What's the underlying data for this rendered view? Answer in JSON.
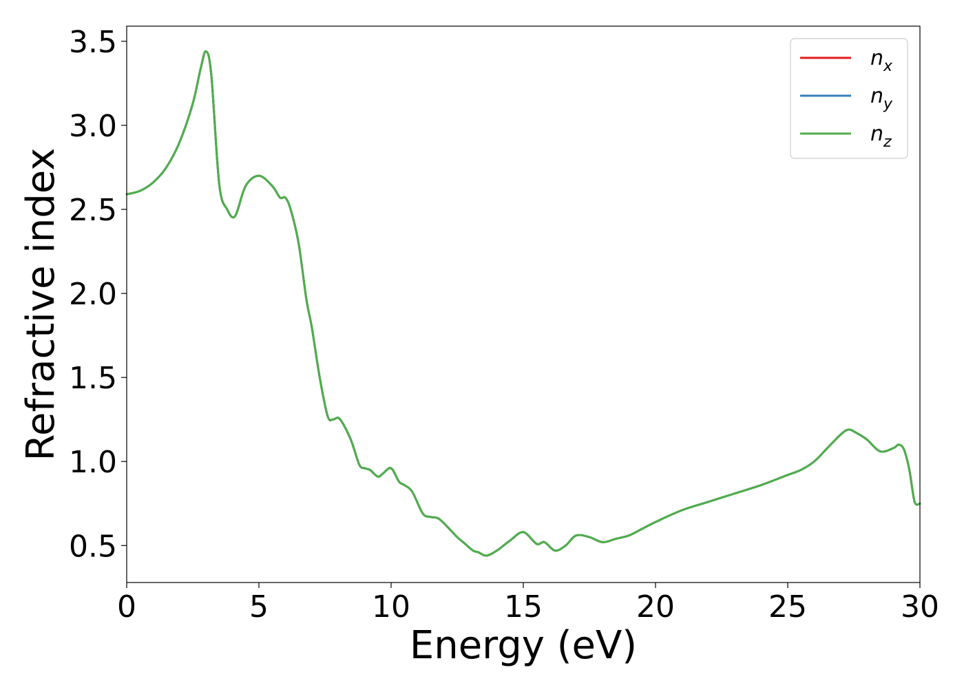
{
  "chart_data": {
    "type": "line",
    "xlabel": "Energy (eV)",
    "ylabel": "Refractive index",
    "xlim": [
      0,
      30
    ],
    "ylim": [
      0.28,
      3.59
    ],
    "xticks": [
      0,
      5,
      10,
      15,
      20,
      25,
      30
    ],
    "yticks": [
      0.5,
      1.0,
      1.5,
      2.0,
      2.5,
      3.0,
      3.5
    ],
    "xtick_labels": [
      "0",
      "5",
      "10",
      "15",
      "20",
      "25",
      "30"
    ],
    "ytick_labels": [
      "0.5",
      "1.0",
      "1.5",
      "2.0",
      "2.5",
      "3.0",
      "3.5"
    ],
    "grid": false,
    "legend_position": "top-right",
    "x": [
      0,
      0.5,
      1,
      1.5,
      2,
      2.5,
      2.8,
      3.0,
      3.2,
      3.5,
      3.8,
      4.1,
      4.5,
      5.0,
      5.5,
      5.8,
      6.0,
      6.2,
      6.5,
      6.8,
      7.0,
      7.3,
      7.6,
      7.8,
      8.0,
      8.2,
      8.5,
      8.8,
      9.0,
      9.2,
      9.5,
      9.7,
      10.0,
      10.3,
      10.5,
      10.8,
      11.2,
      11.5,
      11.8,
      12.2,
      12.5,
      12.8,
      13.1,
      13.3,
      13.6,
      14.0,
      14.5,
      15.0,
      15.5,
      15.8,
      16.2,
      16.6,
      17.0,
      17.5,
      18.0,
      18.5,
      19.0,
      19.5,
      20.0,
      21.0,
      22.0,
      23.0,
      24.0,
      25.0,
      25.5,
      26.0,
      26.5,
      27.0,
      27.3,
      27.6,
      28.0,
      28.5,
      29.0,
      29.2,
      29.4,
      29.6,
      29.8,
      30.0
    ],
    "series": [
      {
        "name": "x",
        "color": "#e41a1c",
        "values": [
          2.59,
          2.61,
          2.66,
          2.75,
          2.9,
          3.13,
          3.34,
          3.44,
          3.3,
          2.65,
          2.5,
          2.46,
          2.64,
          2.7,
          2.64,
          2.57,
          2.57,
          2.5,
          2.3,
          1.96,
          1.8,
          1.5,
          1.27,
          1.25,
          1.26,
          1.22,
          1.12,
          0.98,
          0.96,
          0.95,
          0.91,
          0.93,
          0.96,
          0.88,
          0.86,
          0.82,
          0.69,
          0.67,
          0.66,
          0.6,
          0.55,
          0.51,
          0.47,
          0.46,
          0.44,
          0.47,
          0.53,
          0.58,
          0.51,
          0.52,
          0.47,
          0.5,
          0.56,
          0.55,
          0.52,
          0.54,
          0.56,
          0.6,
          0.64,
          0.71,
          0.76,
          0.81,
          0.86,
          0.92,
          0.95,
          1.0,
          1.08,
          1.16,
          1.19,
          1.17,
          1.13,
          1.06,
          1.08,
          1.1,
          1.07,
          0.95,
          0.76,
          0.75
        ]
      },
      {
        "name": "y",
        "color": "#377eb8",
        "values": [
          2.59,
          2.61,
          2.66,
          2.75,
          2.9,
          3.13,
          3.34,
          3.44,
          3.3,
          2.65,
          2.5,
          2.46,
          2.64,
          2.7,
          2.64,
          2.57,
          2.57,
          2.5,
          2.3,
          1.96,
          1.8,
          1.5,
          1.27,
          1.25,
          1.26,
          1.22,
          1.12,
          0.98,
          0.96,
          0.95,
          0.91,
          0.93,
          0.96,
          0.88,
          0.86,
          0.82,
          0.69,
          0.67,
          0.66,
          0.6,
          0.55,
          0.51,
          0.47,
          0.46,
          0.44,
          0.47,
          0.53,
          0.58,
          0.51,
          0.52,
          0.47,
          0.5,
          0.56,
          0.55,
          0.52,
          0.54,
          0.56,
          0.6,
          0.64,
          0.71,
          0.76,
          0.81,
          0.86,
          0.92,
          0.95,
          1.0,
          1.08,
          1.16,
          1.19,
          1.17,
          1.13,
          1.06,
          1.08,
          1.1,
          1.07,
          0.95,
          0.76,
          0.75
        ]
      },
      {
        "name": "z",
        "color": "#4daf4a",
        "values": [
          2.59,
          2.61,
          2.66,
          2.75,
          2.9,
          3.13,
          3.34,
          3.44,
          3.3,
          2.65,
          2.5,
          2.46,
          2.64,
          2.7,
          2.64,
          2.57,
          2.57,
          2.5,
          2.3,
          1.96,
          1.8,
          1.5,
          1.27,
          1.25,
          1.26,
          1.22,
          1.12,
          0.98,
          0.96,
          0.95,
          0.91,
          0.93,
          0.96,
          0.88,
          0.86,
          0.82,
          0.69,
          0.67,
          0.66,
          0.6,
          0.55,
          0.51,
          0.47,
          0.46,
          0.44,
          0.47,
          0.53,
          0.58,
          0.51,
          0.52,
          0.47,
          0.5,
          0.56,
          0.55,
          0.52,
          0.54,
          0.56,
          0.6,
          0.64,
          0.71,
          0.76,
          0.81,
          0.86,
          0.92,
          0.95,
          1.0,
          1.08,
          1.16,
          1.19,
          1.17,
          1.13,
          1.06,
          1.08,
          1.1,
          1.07,
          0.95,
          0.76,
          0.75
        ]
      }
    ],
    "legend": [
      {
        "main": "n",
        "sub": "x"
      },
      {
        "main": "n",
        "sub": "y"
      },
      {
        "main": "n",
        "sub": "z"
      }
    ]
  }
}
